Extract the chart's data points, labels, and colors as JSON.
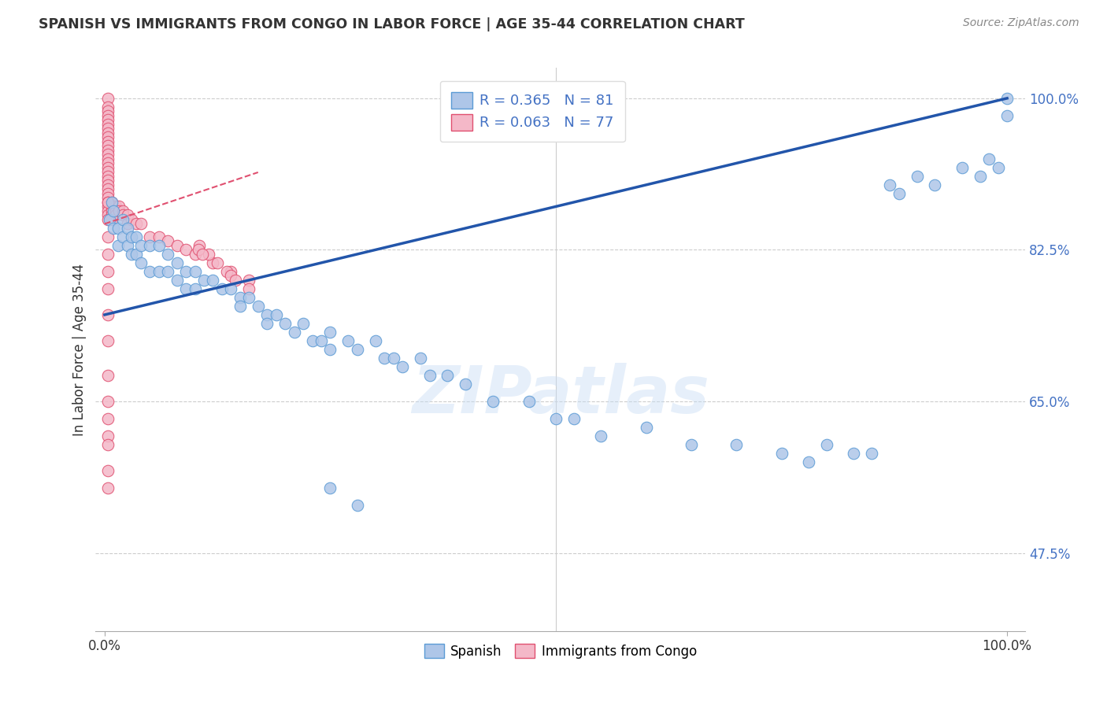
{
  "title": "SPANISH VS IMMIGRANTS FROM CONGO IN LABOR FORCE | AGE 35-44 CORRELATION CHART",
  "source": "Source: ZipAtlas.com",
  "ylabel": "In Labor Force | Age 35-44",
  "watermark": "ZIPatlas",
  "legend": {
    "spanish_R": "0.365",
    "spanish_N": "81",
    "congo_R": "0.063",
    "congo_N": "77"
  },
  "blue_color": "#aec6e8",
  "blue_edge_color": "#5b9bd5",
  "pink_color": "#f4b8c8",
  "pink_edge_color": "#e05070",
  "pink_reg_color": "#e05070",
  "blue_reg_color": "#2255aa",
  "grid_color": "#cccccc",
  "title_color": "#333333",
  "tick_color": "#4472c4",
  "xlim": [
    -0.01,
    1.02
  ],
  "ylim": [
    0.385,
    1.035
  ],
  "yticks": [
    0.475,
    0.65,
    0.825,
    1.0
  ],
  "ytick_labels": [
    "47.5%",
    "65.0%",
    "82.5%",
    "100.0%"
  ],
  "spanish_x": [
    0.005,
    0.008,
    0.01,
    0.01,
    0.015,
    0.015,
    0.02,
    0.02,
    0.025,
    0.025,
    0.03,
    0.03,
    0.035,
    0.035,
    0.04,
    0.04,
    0.05,
    0.05,
    0.06,
    0.06,
    0.07,
    0.07,
    0.08,
    0.08,
    0.09,
    0.09,
    0.1,
    0.1,
    0.11,
    0.12,
    0.13,
    0.14,
    0.15,
    0.15,
    0.16,
    0.17,
    0.18,
    0.18,
    0.19,
    0.2,
    0.21,
    0.22,
    0.23,
    0.24,
    0.25,
    0.25,
    0.27,
    0.28,
    0.3,
    0.31,
    0.32,
    0.33,
    0.35,
    0.36,
    0.38,
    0.4,
    0.43,
    0.47,
    0.5,
    0.52,
    0.55,
    0.6,
    0.65,
    0.7,
    0.75,
    0.78,
    0.8,
    0.83,
    0.85,
    0.87,
    0.88,
    0.9,
    0.92,
    0.95,
    0.97,
    0.98,
    0.99,
    1.0,
    1.0,
    0.25,
    0.28
  ],
  "spanish_y": [
    0.86,
    0.88,
    0.85,
    0.87,
    0.83,
    0.85,
    0.86,
    0.84,
    0.85,
    0.83,
    0.84,
    0.82,
    0.84,
    0.82,
    0.83,
    0.81,
    0.83,
    0.8,
    0.83,
    0.8,
    0.82,
    0.8,
    0.81,
    0.79,
    0.8,
    0.78,
    0.8,
    0.78,
    0.79,
    0.79,
    0.78,
    0.78,
    0.77,
    0.76,
    0.77,
    0.76,
    0.75,
    0.74,
    0.75,
    0.74,
    0.73,
    0.74,
    0.72,
    0.72,
    0.73,
    0.71,
    0.72,
    0.71,
    0.72,
    0.7,
    0.7,
    0.69,
    0.7,
    0.68,
    0.68,
    0.67,
    0.65,
    0.65,
    0.63,
    0.63,
    0.61,
    0.62,
    0.6,
    0.6,
    0.59,
    0.58,
    0.6,
    0.59,
    0.59,
    0.9,
    0.89,
    0.91,
    0.9,
    0.92,
    0.91,
    0.93,
    0.92,
    1.0,
    0.98,
    0.55,
    0.53
  ],
  "congo_x": [
    0.004,
    0.004,
    0.004,
    0.004,
    0.004,
    0.004,
    0.004,
    0.004,
    0.004,
    0.004,
    0.004,
    0.004,
    0.004,
    0.004,
    0.004,
    0.004,
    0.004,
    0.004,
    0.004,
    0.004,
    0.004,
    0.004,
    0.004,
    0.004,
    0.004,
    0.004,
    0.004,
    0.008,
    0.008,
    0.008,
    0.008,
    0.008,
    0.012,
    0.012,
    0.012,
    0.016,
    0.016,
    0.02,
    0.02,
    0.025,
    0.025,
    0.03,
    0.035,
    0.04,
    0.05,
    0.06,
    0.07,
    0.08,
    0.09,
    0.1,
    0.12,
    0.14,
    0.16,
    0.105,
    0.115,
    0.125,
    0.135,
    0.14,
    0.145,
    0.16,
    0.104,
    0.108,
    0.004,
    0.004,
    0.004,
    0.004,
    0.004,
    0.004,
    0.004,
    0.004,
    0.004,
    0.004,
    0.004,
    0.004,
    0.004,
    0.004,
    0.004
  ],
  "congo_y": [
    1.0,
    0.99,
    0.985,
    0.98,
    0.975,
    0.97,
    0.965,
    0.96,
    0.955,
    0.95,
    0.945,
    0.94,
    0.935,
    0.93,
    0.925,
    0.92,
    0.915,
    0.91,
    0.905,
    0.9,
    0.895,
    0.89,
    0.885,
    0.88,
    0.875,
    0.87,
    0.865,
    0.88,
    0.875,
    0.87,
    0.865,
    0.86,
    0.875,
    0.87,
    0.865,
    0.875,
    0.87,
    0.87,
    0.865,
    0.865,
    0.855,
    0.86,
    0.855,
    0.855,
    0.84,
    0.84,
    0.835,
    0.83,
    0.825,
    0.82,
    0.81,
    0.8,
    0.79,
    0.83,
    0.82,
    0.81,
    0.8,
    0.795,
    0.79,
    0.78,
    0.825,
    0.82,
    0.65,
    0.61,
    0.57,
    0.55,
    0.6,
    0.63,
    0.68,
    0.72,
    0.75,
    0.78,
    0.8,
    0.82,
    0.84,
    0.86,
    0.88
  ]
}
